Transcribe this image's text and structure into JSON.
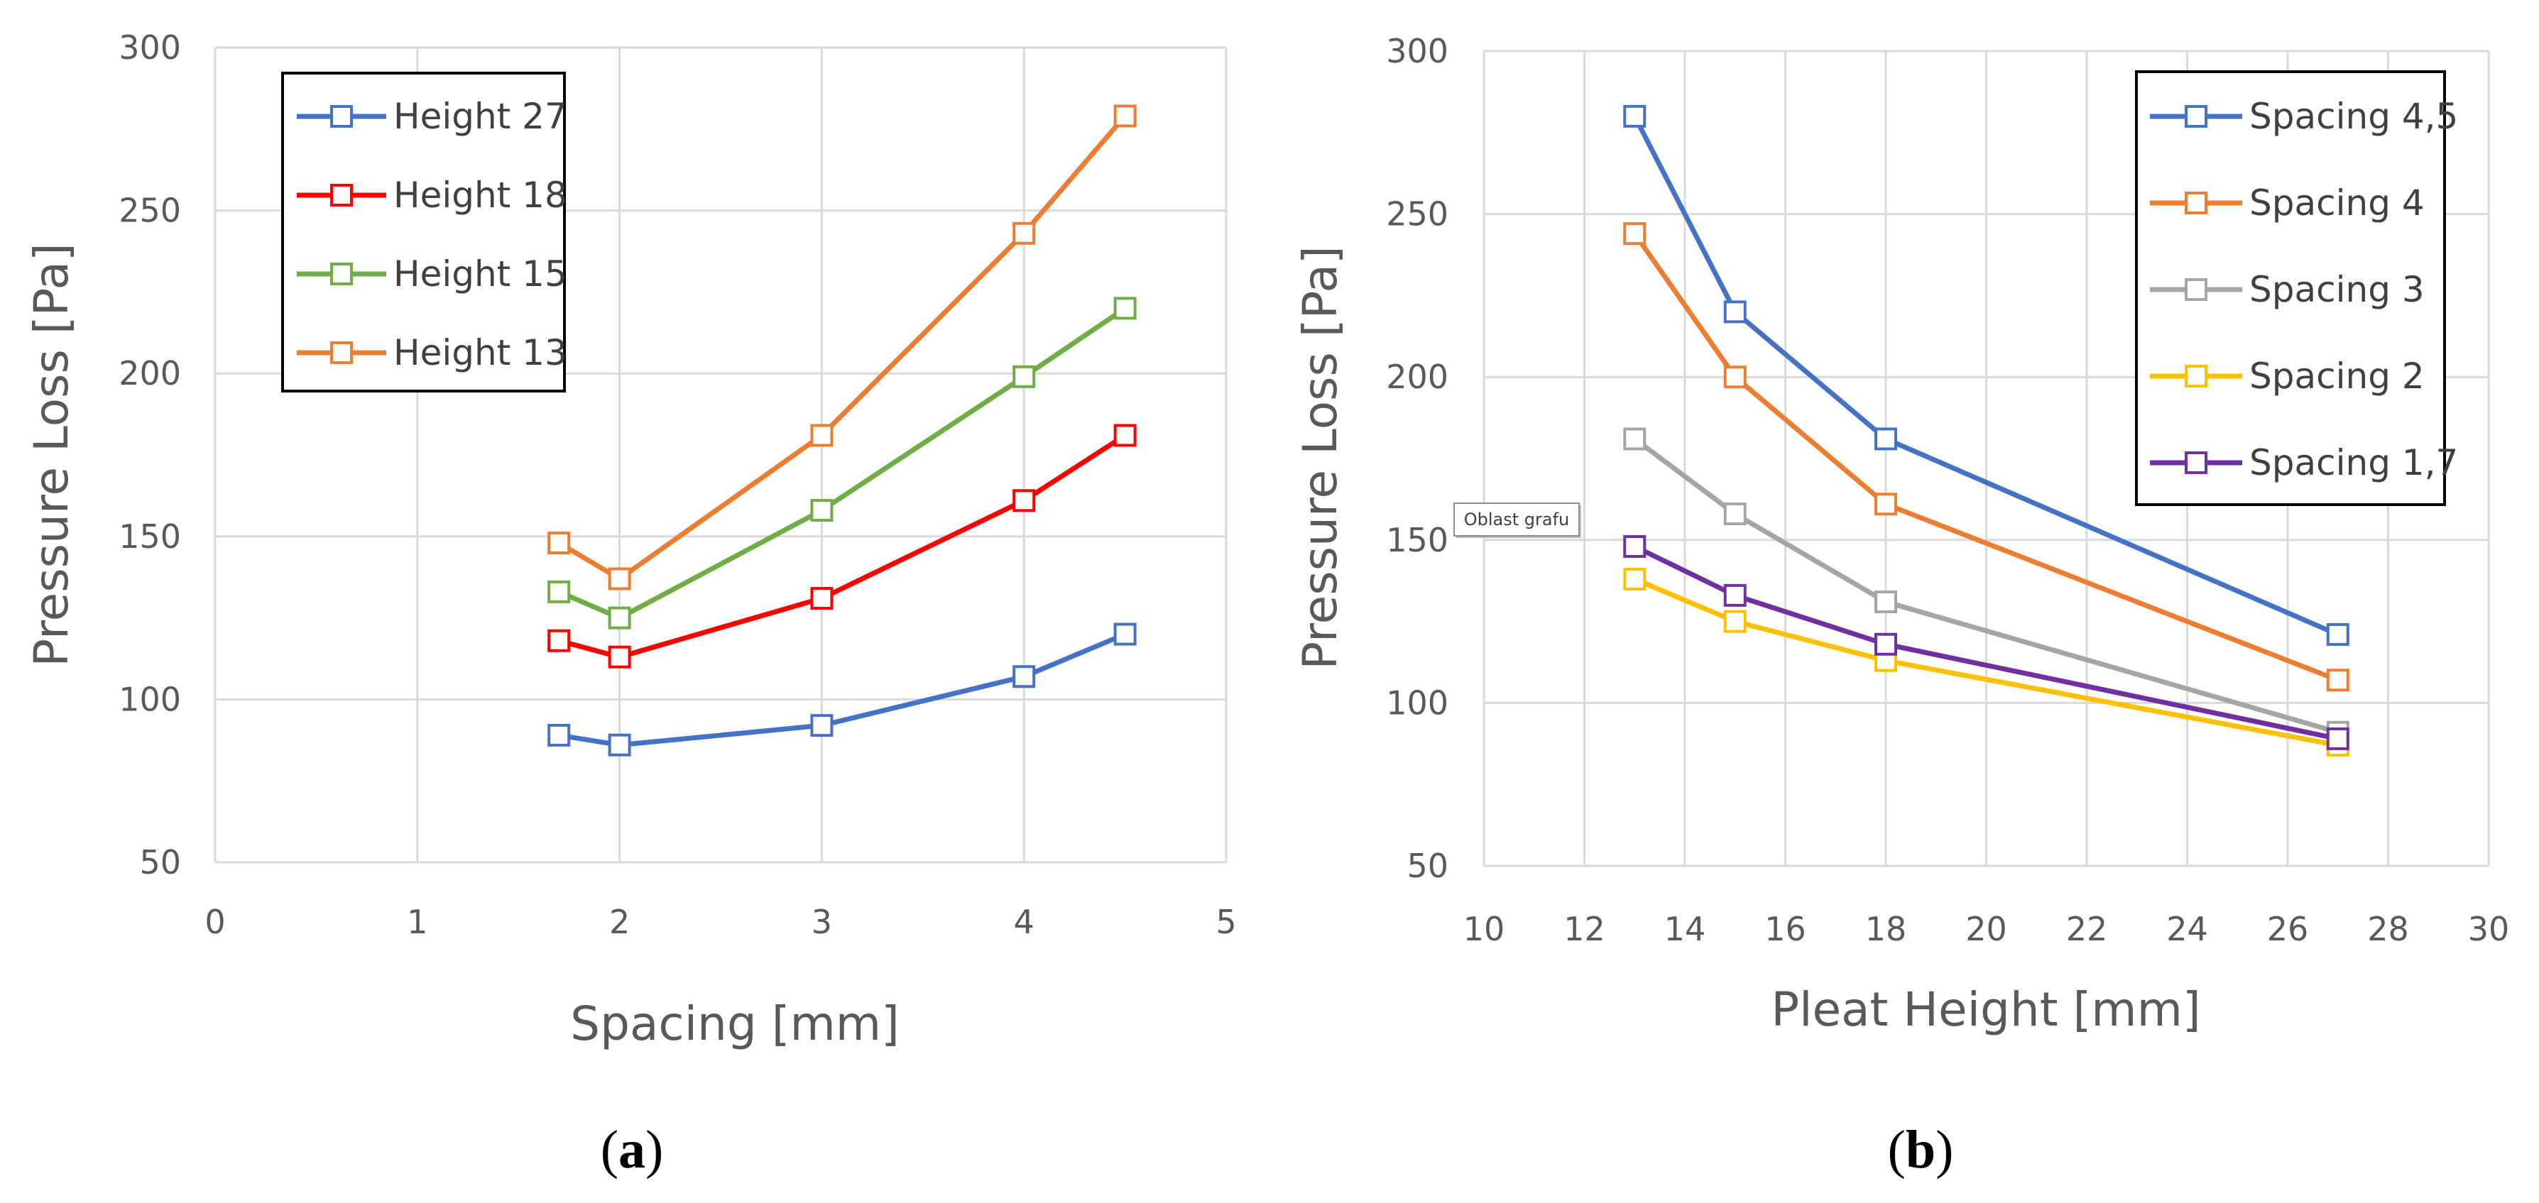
{
  "chart_data": [
    {
      "type": "line",
      "panel_label": "a",
      "xlabel": "Spacing [mm]",
      "ylabel": "Pressure Loss [Pa]",
      "xlim": [
        0,
        5
      ],
      "ylim": [
        50,
        300
      ],
      "xticks": [
        0,
        1,
        2,
        3,
        4,
        5
      ],
      "yticks": [
        50,
        100,
        150,
        200,
        250,
        300
      ],
      "grid": true,
      "legend_position": "top-left",
      "series": [
        {
          "name": "Height 27",
          "color": "#4472C4",
          "x": [
            1.7,
            2,
            3,
            4,
            4.5
          ],
          "y": [
            89,
            86,
            92,
            107,
            120
          ]
        },
        {
          "name": "Height 18",
          "color": "#FF0000",
          "x": [
            1.7,
            2,
            3,
            4,
            4.5
          ],
          "y": [
            118,
            113,
            131,
            161,
            181
          ]
        },
        {
          "name": "Height 15",
          "color": "#70AD47",
          "x": [
            1.7,
            2,
            3,
            4,
            4.5
          ],
          "y": [
            133,
            125,
            158,
            199,
            220
          ]
        },
        {
          "name": "Height 13",
          "color": "#ED7D31",
          "x": [
            1.7,
            2,
            3,
            4,
            4.5
          ],
          "y": [
            148,
            137,
            181,
            243,
            279
          ]
        }
      ]
    },
    {
      "type": "line",
      "panel_label": "b",
      "xlabel": "Pleat  Height [mm]",
      "ylabel": "Pressure Loss [Pa]",
      "xlim": [
        10,
        30
      ],
      "ylim": [
        50,
        300
      ],
      "xticks": [
        10,
        12,
        14,
        16,
        18,
        20,
        22,
        24,
        26,
        28,
        30
      ],
      "yticks": [
        50,
        100,
        150,
        200,
        250,
        300
      ],
      "grid": true,
      "legend_position": "top-right",
      "annotation": "Oblast grafu",
      "series": [
        {
          "name": "Spacing 4,5",
          "color": "#4472C4",
          "x": [
            13,
            15,
            18,
            27
          ],
          "y": [
            280,
            220,
            181,
            121
          ]
        },
        {
          "name": "Spacing 4",
          "color": "#ED7D31",
          "x": [
            13,
            15,
            18,
            27
          ],
          "y": [
            244,
            200,
            161,
            107
          ]
        },
        {
          "name": "Spacing 3",
          "color": "#A5A5A5",
          "x": [
            13,
            15,
            18,
            27
          ],
          "y": [
            181,
            158,
            131,
            91
          ]
        },
        {
          "name": "Spacing 2",
          "color": "#FFC000",
          "x": [
            13,
            15,
            18,
            27
          ],
          "y": [
            138,
            125,
            113,
            87
          ]
        },
        {
          "name": "Spacing 1,7",
          "color": "#7030A0",
          "x": [
            13,
            15,
            18,
            27
          ],
          "y": [
            148,
            133,
            118,
            89
          ]
        }
      ]
    }
  ]
}
